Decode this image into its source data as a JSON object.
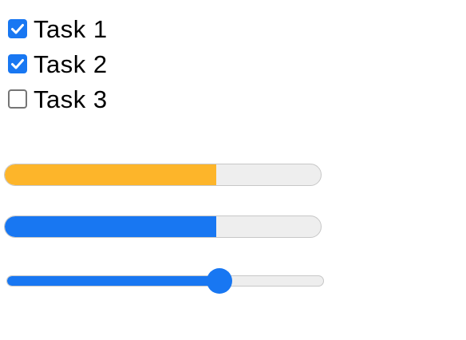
{
  "tasks": [
    {
      "label": "Task 1",
      "checked": true
    },
    {
      "label": "Task 2",
      "checked": true
    },
    {
      "label": "Task 3",
      "checked": false
    }
  ],
  "progress_bars": [
    {
      "value_percent": 67,
      "color": "#fdb52a"
    },
    {
      "value_percent": 67,
      "color": "#1877f2"
    }
  ],
  "slider": {
    "value_percent": 67,
    "color": "#1877f2"
  },
  "colors": {
    "accent": "#1877f2",
    "track": "#eeeeee",
    "track_border": "#c7c7c7"
  }
}
